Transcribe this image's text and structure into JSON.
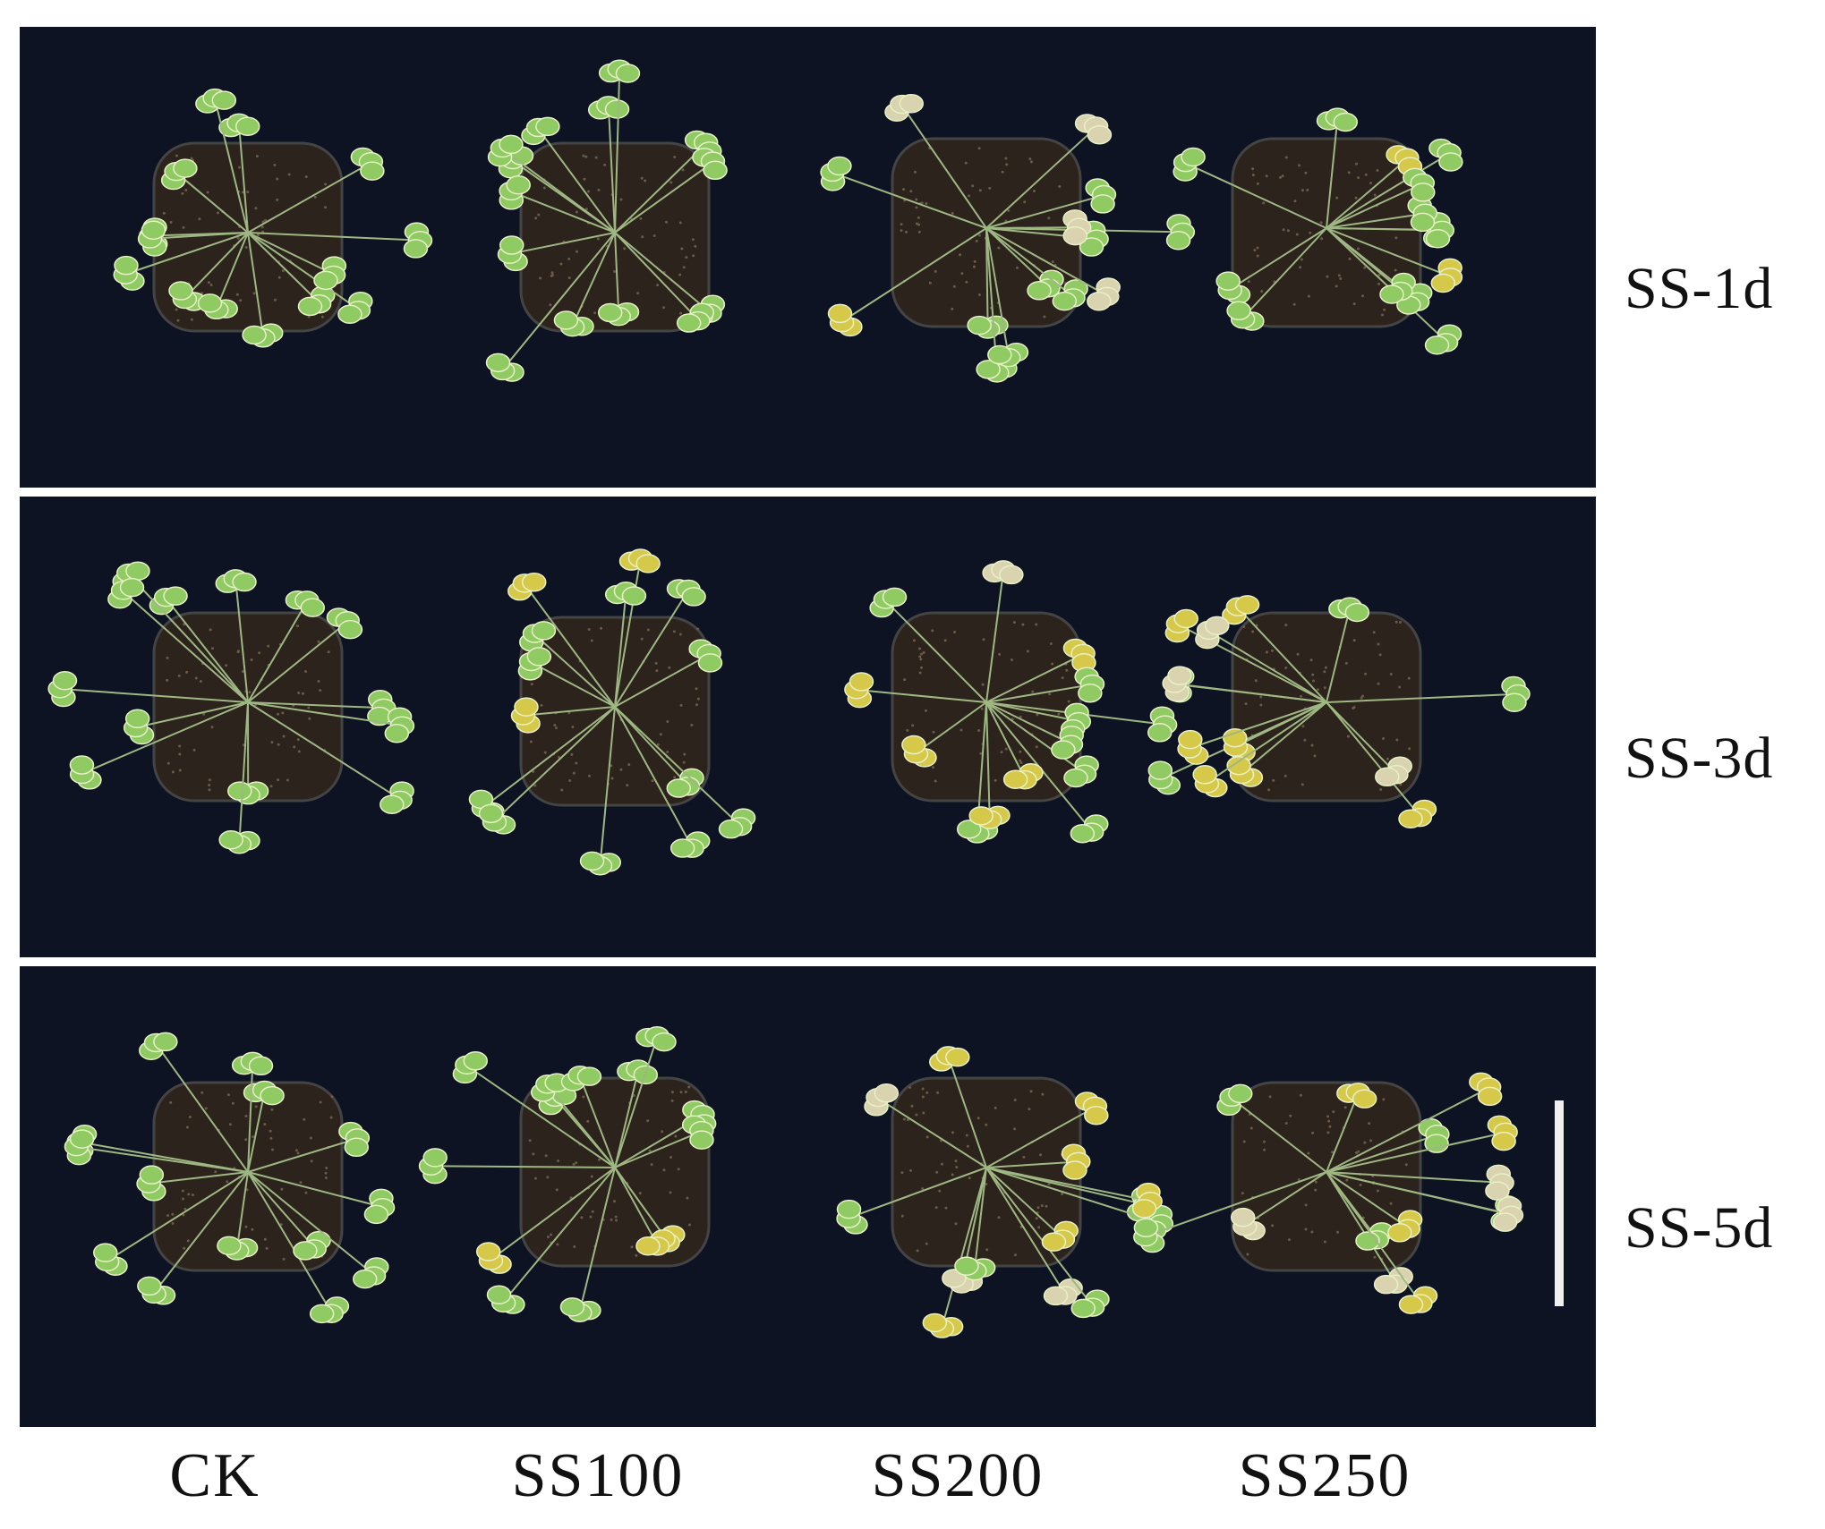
{
  "rows": [
    {
      "label": "SS-1d"
    },
    {
      "label": "SS-3d"
    },
    {
      "label": "SS-5d"
    }
  ],
  "columns": [
    {
      "label": "CK"
    },
    {
      "label": "SS100"
    },
    {
      "label": "SS200"
    },
    {
      "label": "SS250"
    }
  ],
  "colors": {
    "background": "#0d1322",
    "pot": "#1b1b1e",
    "soil": "#2b231c",
    "leaf_healthy": "#8fca62",
    "leaf_yellow": "#d6c94a",
    "leaf_dry": "#d9d3b0",
    "scale_bar": "#f0f0f0"
  }
}
